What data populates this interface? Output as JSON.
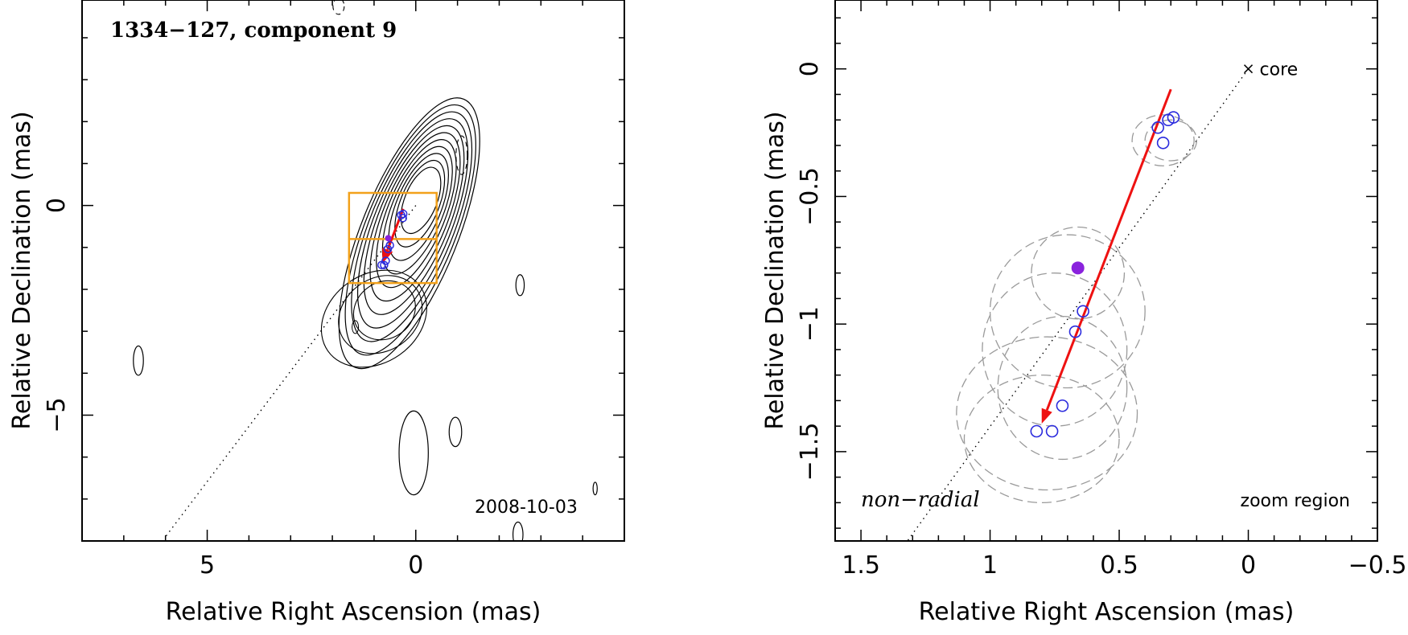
{
  "colors": {
    "axis": "#000000",
    "contour": "#000000",
    "arrow": "#ee1111",
    "box": "#f2a11b",
    "component": "#2b2bdd",
    "filled_point": "#8a22dd",
    "error_ellipse": "#9a9a9a"
  },
  "chart_data": [
    {
      "type": "scatter",
      "subtype": "contour-map",
      "title": "1334−127, component 9",
      "date": "2008-10-03",
      "xlabel": "Relative Right Ascension (mas)",
      "ylabel": "Relative Declination (mas)",
      "xlim": [
        8.0,
        -5.0
      ],
      "ylim": [
        -8.0,
        4.9
      ],
      "xticks": [
        5,
        0
      ],
      "xtick_labels": [
        "5",
        "0"
      ],
      "yticks": [
        0,
        -5
      ],
      "ytick_labels": [
        "0",
        "−5"
      ],
      "contour_center": [
        -0.15,
        0.2
      ],
      "contour_levels": 11,
      "secondary_features": [
        {
          "ra": 6.65,
          "dec": -3.7,
          "w": 0.12,
          "h": 0.35
        },
        {
          "ra": 0.05,
          "dec": -5.9,
          "w": 0.35,
          "h": 1.0
        },
        {
          "ra": -0.95,
          "dec": -5.4,
          "w": 0.15,
          "h": 0.35
        },
        {
          "ra": -2.5,
          "dec": -1.9,
          "w": 0.1,
          "h": 0.25
        },
        {
          "ra": -2.45,
          "dec": -7.85,
          "w": 0.12,
          "h": 0.3
        },
        {
          "ra": -4.3,
          "dec": -6.75,
          "w": 0.05,
          "h": 0.15
        }
      ],
      "zoom_box": {
        "ra": [
          1.6,
          -0.5
        ],
        "dec": [
          -1.85,
          0.3
        ]
      },
      "zoom_box_split_dec": -0.8,
      "components": [
        {
          "ra": 0.35,
          "dec": -0.23
        },
        {
          "ra": 0.31,
          "dec": -0.3
        },
        {
          "ra": 0.3,
          "dec": -0.2
        },
        {
          "ra": 0.62,
          "dec": -0.95
        },
        {
          "ra": 0.67,
          "dec": -1.04
        },
        {
          "ra": 0.72,
          "dec": -1.32
        },
        {
          "ra": 0.82,
          "dec": -1.42
        },
        {
          "ra": 0.76,
          "dec": -1.42
        }
      ],
      "filled_point": {
        "ra": 0.66,
        "dec": -0.78
      },
      "arrow": {
        "from": [
          0.3,
          -0.08
        ],
        "to": [
          0.8,
          -1.38
        ]
      },
      "ridge_line": {
        "from": [
          0.0,
          0.0
        ],
        "to": [
          6.0,
          -7.9
        ]
      }
    },
    {
      "type": "scatter",
      "subtype": "zoom-region",
      "label": "zoom region",
      "annotation": "non−radial",
      "core_label": "core",
      "xlabel": "Relative Right Ascension (mas)",
      "ylabel": "Relative Declination (mas)",
      "xlim": [
        1.6,
        -0.5
      ],
      "ylim": [
        -1.85,
        0.27
      ],
      "xticks": [
        1.5,
        1,
        0.5,
        0,
        -0.5
      ],
      "xtick_labels": [
        "1.5",
        "1",
        "0.5",
        "0",
        "−0.5"
      ],
      "yticks": [
        0,
        -0.5,
        -1,
        -1.5
      ],
      "ytick_labels": [
        "0",
        "−0.5",
        "−1",
        "−1.5"
      ],
      "core": {
        "ra": 0.0,
        "dec": 0.0
      },
      "components": [
        {
          "ra": 0.35,
          "dec": -0.23
        },
        {
          "ra": 0.31,
          "dec": -0.2
        },
        {
          "ra": 0.29,
          "dec": -0.19
        },
        {
          "ra": 0.33,
          "dec": -0.29
        },
        {
          "ra": 0.64,
          "dec": -0.95
        },
        {
          "ra": 0.67,
          "dec": -1.03
        },
        {
          "ra": 0.72,
          "dec": -1.32
        },
        {
          "ra": 0.82,
          "dec": -1.42
        },
        {
          "ra": 0.76,
          "dec": -1.42
        }
      ],
      "filled_point": {
        "ra": 0.66,
        "dec": -0.78
      },
      "error_ellipses": [
        {
          "ra": 0.33,
          "dec": -0.28,
          "rx": 0.12,
          "ry": 0.1
        },
        {
          "ra": 0.3,
          "dec": -0.28,
          "rx": 0.1,
          "ry": 0.08
        },
        {
          "ra": 0.66,
          "dec": -0.8,
          "rx": 0.18,
          "ry": 0.18
        },
        {
          "ra": 0.7,
          "dec": -0.95,
          "rx": 0.3,
          "ry": 0.3
        },
        {
          "ra": 0.75,
          "dec": -1.1,
          "rx": 0.28,
          "ry": 0.3
        },
        {
          "ra": 0.78,
          "dec": -1.35,
          "rx": 0.35,
          "ry": 0.3
        },
        {
          "ra": 0.8,
          "dec": -1.45,
          "rx": 0.3,
          "ry": 0.25
        },
        {
          "ra": 0.72,
          "dec": -1.25,
          "rx": 0.25,
          "ry": 0.28
        }
      ],
      "arrow": {
        "from": [
          0.3,
          -0.08
        ],
        "to": [
          0.8,
          -1.39
        ]
      },
      "ridge_line": {
        "from": [
          0.0,
          0.0
        ],
        "to": [
          1.32,
          -1.85
        ]
      }
    }
  ]
}
